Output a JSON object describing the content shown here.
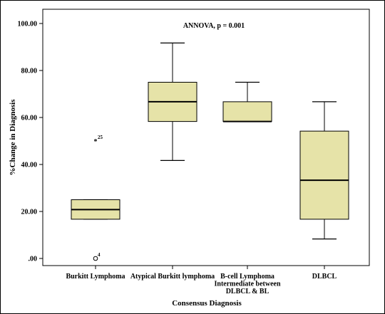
{
  "chart_data": {
    "type": "box",
    "annotation": "ANNOVA, p = 0.001",
    "xlabel": "Consensus Diagnosis",
    "ylabel": "%Change in Diagnosis",
    "ylim": [
      0,
      100
    ],
    "yticks": [
      {
        "value": 0,
        "label": ".00"
      },
      {
        "value": 20,
        "label": "20.00"
      },
      {
        "value": 40,
        "label": "40.00"
      },
      {
        "value": 60,
        "label": "60.00"
      },
      {
        "value": 80,
        "label": "80.00"
      },
      {
        "value": 100,
        "label": "100.00"
      }
    ],
    "categories": [
      {
        "lines": [
          "Burkitt Lymphoma"
        ]
      },
      {
        "lines": [
          "Atypical Burkitt lymphoma"
        ]
      },
      {
        "lines": [
          "B-cell Lymphoma",
          "Intermediate between",
          "DLBCL & BL"
        ]
      },
      {
        "lines": [
          "DLBCL"
        ]
      }
    ],
    "box_color": "#e6e3a8",
    "boxes": [
      {
        "whisker_low": 16.7,
        "q1": 16.7,
        "median": 20.8,
        "q3": 25.0,
        "whisker_high": 25.0,
        "outliers": [
          {
            "value": 50.0,
            "marker": "star",
            "label": "25"
          },
          {
            "value": 0.0,
            "marker": "circle",
            "label": "4"
          }
        ]
      },
      {
        "whisker_low": 41.7,
        "q1": 58.3,
        "median": 66.7,
        "q3": 75.0,
        "whisker_high": 91.7,
        "outliers": []
      },
      {
        "whisker_low": 58.3,
        "q1": 58.3,
        "median": 58.3,
        "q3": 66.7,
        "whisker_high": 75.0,
        "outliers": []
      },
      {
        "whisker_low": 8.3,
        "q1": 16.7,
        "median": 33.3,
        "q3": 54.2,
        "whisker_high": 66.7,
        "outliers": []
      }
    ]
  }
}
